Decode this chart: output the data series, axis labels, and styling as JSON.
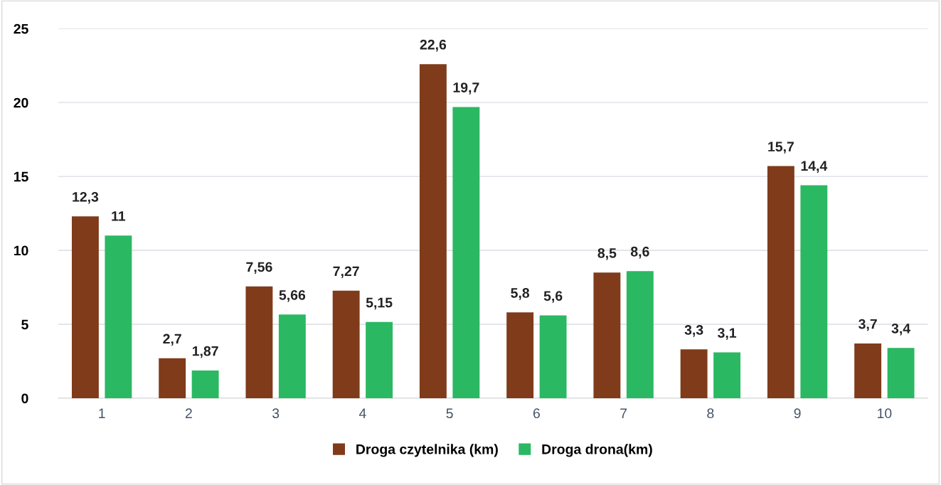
{
  "chart_data": {
    "type": "bar",
    "categories": [
      "1",
      "2",
      "3",
      "4",
      "5",
      "6",
      "7",
      "8",
      "9",
      "10"
    ],
    "series": [
      {
        "name": "Droga czytelnika (km)",
        "color": "#7f3b1a",
        "values": [
          12.3,
          2.7,
          7.56,
          7.27,
          22.6,
          5.8,
          8.5,
          3.3,
          15.7,
          3.7
        ],
        "value_labels": [
          "12,3",
          "2,7",
          "7,56",
          "7,27",
          "22,6",
          "5,8",
          "8,5",
          "3,3",
          "15,7",
          "3,7"
        ]
      },
      {
        "name": "Droga drona(km)",
        "color": "#2bb862",
        "values": [
          11,
          1.87,
          5.66,
          5.15,
          19.7,
          5.6,
          8.6,
          3.1,
          14.4,
          3.4
        ],
        "value_labels": [
          "11",
          "1,87",
          "5,66",
          "5,15",
          "19,7",
          "5,6",
          "8,6",
          "3,1",
          "14,4",
          "3,4"
        ]
      }
    ],
    "ylim": [
      0,
      25
    ],
    "yticks": [
      0,
      5,
      10,
      15,
      20,
      25
    ],
    "grid": "y",
    "legend": "bottom"
  }
}
